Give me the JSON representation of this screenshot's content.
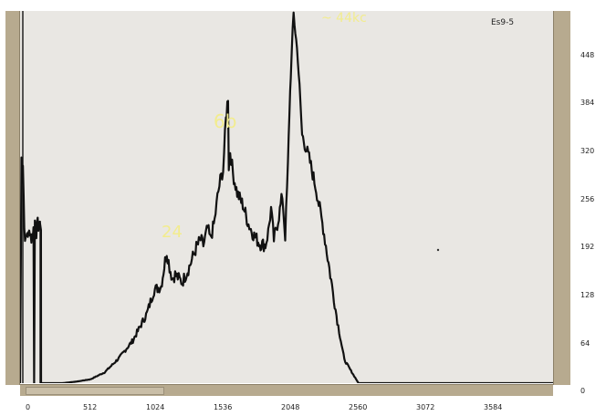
{
  "chart_data": {
    "type": "line",
    "title": "Es9-5",
    "xlabel": "",
    "ylabel": "",
    "xlim": [
      0,
      3780
    ],
    "ylim": [
      0,
      480
    ],
    "x_ticks": [
      "0",
      "512",
      "1024",
      "1536",
      "2048",
      "2560",
      "3072",
      "3584"
    ],
    "y_ticks": [
      "448",
      "384",
      "320",
      "256",
      "192",
      "128",
      "64",
      "0"
    ],
    "series": [
      {
        "x": [
          0,
          10,
          20,
          30,
          40,
          50,
          60,
          70,
          80,
          90,
          95,
          100,
          105,
          115,
          125,
          140,
          148,
          149,
          150,
          200,
          300,
          400,
          500,
          600,
          700,
          800,
          900,
          950,
          1000,
          1040,
          1060,
          1080,
          1100,
          1150,
          1200,
          1250,
          1280,
          1300,
          1330,
          1350,
          1380,
          1400,
          1420,
          1440,
          1460,
          1475,
          1480,
          1490,
          1510,
          1540,
          1580,
          1620,
          1660,
          1700,
          1740,
          1760,
          1780,
          1800,
          1830,
          1860,
          1880,
          1900,
          1910,
          1920,
          1940,
          1970,
          2000,
          2050,
          2100,
          2150,
          2200,
          2250,
          2300,
          2400,
          2600,
          3000,
          3500,
          3780
        ],
        "y": [
          0,
          290,
          285,
          200,
          182,
          195,
          190,
          198,
          186,
          192,
          200,
          0,
          210,
          195,
          205,
          200,
          203,
          0,
          0,
          0,
          0,
          2,
          5,
          14,
          32,
          55,
          90,
          120,
          125,
          170,
          150,
          135,
          140,
          130,
          150,
          175,
          185,
          178,
          200,
          185,
          210,
          240,
          262,
          275,
          340,
          370,
          280,
          300,
          270,
          245,
          230,
          205,
          190,
          180,
          178,
          195,
          225,
          185,
          210,
          242,
          190,
          280,
          350,
          400,
          476,
          420,
          320,
          290,
          250,
          200,
          140,
          80,
          30,
          0,
          0,
          0,
          0,
          0
        ]
      }
    ],
    "annotations": [
      "~ 44kc",
      "6b",
      "24"
    ],
    "grid": false,
    "legend": "none"
  }
}
